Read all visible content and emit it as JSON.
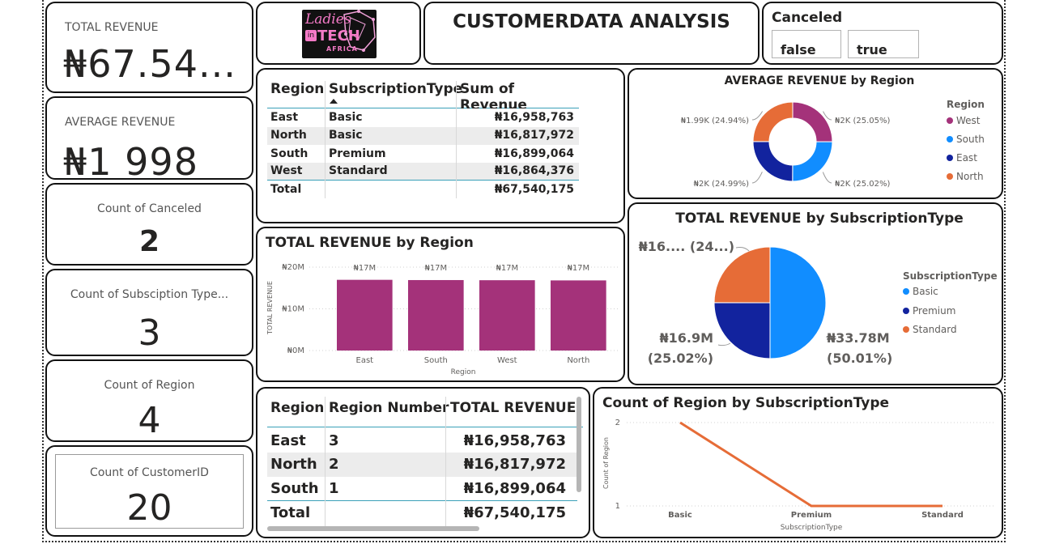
{
  "title": "CUSTOMERDATA ANALYSIS",
  "logo": {
    "line1": "Ladies",
    "line2": "TECH",
    "line3": "AFRICA",
    "badge": "in"
  },
  "kpis": {
    "total_revenue": {
      "label": "TOTAL REVENUE",
      "value": "₦67.54..."
    },
    "average_revenue": {
      "label": "AVERAGE REVENUE",
      "value": "₦1 998"
    },
    "count_canceled": {
      "label": "Count of Canceled",
      "value": "2"
    },
    "count_subscription": {
      "label": "Count of Subsciption Type...",
      "value": "3"
    },
    "count_region": {
      "label": "Count of Region",
      "value": "4"
    },
    "count_customer": {
      "label": "Count of CustomerID",
      "value": "20"
    }
  },
  "slicer": {
    "title": "Canceled",
    "options": [
      "false",
      "true"
    ]
  },
  "table1": {
    "headers": [
      "Region",
      "SubscriptionType",
      "Sum of Revenue"
    ],
    "rows": [
      [
        "East",
        "Basic",
        "₦16,958,763"
      ],
      [
        "North",
        "Basic",
        "₦16,817,972"
      ],
      [
        "South",
        "Premium",
        "₦16,899,064"
      ],
      [
        "West",
        "Standard",
        "₦16,864,376"
      ]
    ],
    "total": [
      "Total",
      "",
      "₦67,540,175"
    ]
  },
  "table2": {
    "headers": [
      "Region",
      "Region Number",
      "TOTAL REVENUE"
    ],
    "rows": [
      [
        "East",
        "3",
        "₦16,958,763"
      ],
      [
        "North",
        "2",
        "₦16,817,972"
      ],
      [
        "South",
        "1",
        "₦16,899,064"
      ]
    ],
    "total": [
      "Total",
      "",
      "₦67,540,175"
    ]
  },
  "colors": {
    "west": "#a4327a",
    "south": "#118dff",
    "east": "#12239e",
    "north": "#e66c37",
    "basic": "#118dff",
    "premium": "#12239e",
    "standard": "#e66c37",
    "bar": "#a4327a",
    "line": "#e66c37"
  },
  "chart_data": [
    {
      "type": "pie",
      "title": "AVERAGE REVENUE by Region",
      "legend_title": "Region",
      "categories": [
        "West",
        "South",
        "East",
        "North"
      ],
      "values": [
        25.05,
        25.02,
        24.99,
        24.94
      ],
      "data_labels": [
        "₦2K (25.05%)",
        "₦2K (25.02%)",
        "₦2K (24.99%)",
        "₦1.99K (24.94%)"
      ],
      "donut": true,
      "legend": "right"
    },
    {
      "type": "bar",
      "title": "TOTAL REVENUE by Region",
      "categories": [
        "East",
        "South",
        "West",
        "North"
      ],
      "values": [
        16958763,
        16899064,
        16864376,
        16817972
      ],
      "data_labels": [
        "₦17M",
        "₦17M",
        "₦17M",
        "₦17M"
      ],
      "xlabel": "Region",
      "ylabel": "TOTAL REVENUE",
      "ylim": [
        0,
        20000000
      ],
      "yticks": [
        "₦0M",
        "₦10M",
        "₦20M"
      ],
      "grid": true
    },
    {
      "type": "pie",
      "title": "TOTAL REVENUE by SubscriptionType",
      "legend_title": "SubscriptionType",
      "categories": [
        "Basic",
        "Premium",
        "Standard"
      ],
      "values": [
        50.01,
        25.02,
        24.97
      ],
      "data_labels": [
        "₦33.78M (50.01%)",
        "₦16.9M (25.02%)",
        "₦16.... (24...)"
      ],
      "label_lines": {
        "basic": [
          "₦33.78M",
          "(50.01%)"
        ],
        "premium": [
          "₦16.9M",
          "(25.02%)"
        ],
        "standard": [
          "₦16.... (24...)"
        ]
      },
      "legend": "right"
    },
    {
      "type": "line",
      "title": "Count of Region by SubscriptionType",
      "categories": [
        "Basic",
        "Premium",
        "Standard"
      ],
      "values": [
        2,
        1,
        1
      ],
      "xlabel": "SubscriptionType",
      "ylabel": "Count of Region",
      "ylim": [
        1,
        2
      ],
      "yticks": [
        "1",
        "2"
      ],
      "grid": true
    }
  ]
}
